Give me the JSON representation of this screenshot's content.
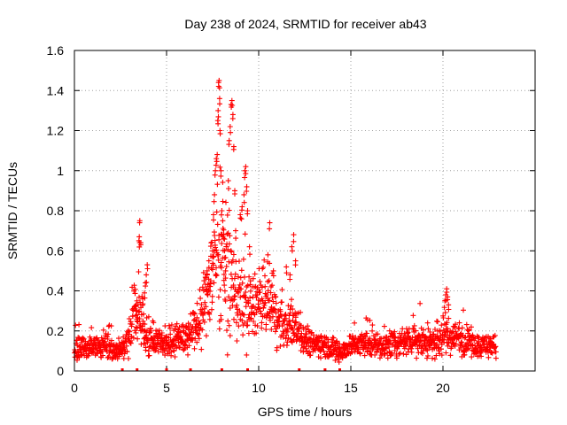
{
  "chart_data": {
    "type": "scatter",
    "title": "Day 238 of 2024, SRMTID for receiver ab43",
    "xlabel": "GPS time / hours",
    "ylabel": "SRMTID / TECUs",
    "xlim": [
      0,
      25
    ],
    "ylim": [
      0,
      1.6
    ],
    "xticks": [
      0,
      5,
      10,
      15,
      20
    ],
    "yticks": [
      0,
      0.2,
      0.4,
      0.6,
      0.8,
      1,
      1.2,
      1.4,
      1.6
    ],
    "xtick_labels": [
      "0",
      "5",
      "10",
      "15",
      "20"
    ],
    "ytick_labels": [
      "0",
      "0.2",
      "0.4",
      "0.6",
      "0.8",
      "1",
      "1.2",
      "1.4",
      "1.6"
    ],
    "grid": true,
    "marker": "+",
    "series": [
      {
        "name": "SRMTID",
        "color": "#ff0000",
        "envelope": [
          [
            0.0,
            0.1,
            0.06
          ],
          [
            0.5,
            0.12,
            0.06
          ],
          [
            1.0,
            0.12,
            0.05
          ],
          [
            1.5,
            0.12,
            0.05
          ],
          [
            2.0,
            0.11,
            0.05
          ],
          [
            2.5,
            0.1,
            0.04
          ],
          [
            3.0,
            0.16,
            0.08
          ],
          [
            3.3,
            0.3,
            0.12
          ],
          [
            3.6,
            0.25,
            0.12
          ],
          [
            4.0,
            0.16,
            0.08
          ],
          [
            4.5,
            0.14,
            0.07
          ],
          [
            5.0,
            0.14,
            0.07
          ],
          [
            5.5,
            0.17,
            0.07
          ],
          [
            6.0,
            0.17,
            0.08
          ],
          [
            6.5,
            0.2,
            0.09
          ],
          [
            7.0,
            0.3,
            0.15
          ],
          [
            7.5,
            0.5,
            0.25
          ],
          [
            7.8,
            0.65,
            0.35
          ],
          [
            8.0,
            0.55,
            0.3
          ],
          [
            8.3,
            0.5,
            0.3
          ],
          [
            8.6,
            0.4,
            0.22
          ],
          [
            9.0,
            0.35,
            0.2
          ],
          [
            9.5,
            0.32,
            0.15
          ],
          [
            10.0,
            0.35,
            0.15
          ],
          [
            10.5,
            0.35,
            0.15
          ],
          [
            11.0,
            0.25,
            0.12
          ],
          [
            11.5,
            0.22,
            0.1
          ],
          [
            12.0,
            0.25,
            0.12
          ],
          [
            12.5,
            0.16,
            0.07
          ],
          [
            13.0,
            0.14,
            0.06
          ],
          [
            13.5,
            0.13,
            0.06
          ],
          [
            14.0,
            0.11,
            0.05
          ],
          [
            14.5,
            0.1,
            0.05
          ],
          [
            15.0,
            0.12,
            0.05
          ],
          [
            15.5,
            0.14,
            0.06
          ],
          [
            16.0,
            0.14,
            0.06
          ],
          [
            16.5,
            0.13,
            0.06
          ],
          [
            17.0,
            0.13,
            0.06
          ],
          [
            17.5,
            0.14,
            0.06
          ],
          [
            18.0,
            0.15,
            0.07
          ],
          [
            18.5,
            0.16,
            0.07
          ],
          [
            19.0,
            0.15,
            0.07
          ],
          [
            19.5,
            0.14,
            0.07
          ],
          [
            20.0,
            0.17,
            0.08
          ],
          [
            20.5,
            0.17,
            0.08
          ],
          [
            21.0,
            0.16,
            0.08
          ],
          [
            21.5,
            0.14,
            0.06
          ],
          [
            22.0,
            0.13,
            0.05
          ],
          [
            22.5,
            0.13,
            0.05
          ],
          [
            22.9,
            0.12,
            0.05
          ]
        ],
        "peaks": [
          [
            3.3,
            0.31
          ],
          [
            3.35,
            0.33
          ],
          [
            3.4,
            0.28
          ],
          [
            3.5,
            0.65
          ],
          [
            3.52,
            0.67
          ],
          [
            3.55,
            0.75
          ],
          [
            3.6,
            0.64
          ],
          [
            3.7,
            0.36
          ],
          [
            3.8,
            0.39
          ],
          [
            3.85,
            0.44
          ],
          [
            3.9,
            0.48
          ],
          [
            3.95,
            0.53
          ],
          [
            7.2,
            0.5
          ],
          [
            7.3,
            0.55
          ],
          [
            7.4,
            0.45
          ],
          [
            7.5,
            0.6
          ],
          [
            7.55,
            0.78
          ],
          [
            7.6,
            0.88
          ],
          [
            7.65,
            1.0
          ],
          [
            7.7,
            1.06
          ],
          [
            7.75,
            1.08
          ],
          [
            7.78,
            1.25
          ],
          [
            7.8,
            1.3
          ],
          [
            7.82,
            1.44
          ],
          [
            7.85,
            1.45
          ],
          [
            7.88,
            1.36
          ],
          [
            7.9,
            1.2
          ],
          [
            7.95,
            1.0
          ],
          [
            8.0,
            0.8
          ],
          [
            8.05,
            0.75
          ],
          [
            8.1,
            0.68
          ],
          [
            8.15,
            0.6
          ],
          [
            8.2,
            0.5
          ],
          [
            8.35,
            0.95
          ],
          [
            8.4,
            1.15
          ],
          [
            8.45,
            1.22
          ],
          [
            8.5,
            1.33
          ],
          [
            8.55,
            1.35
          ],
          [
            8.6,
            1.28
          ],
          [
            8.65,
            1.12
          ],
          [
            8.7,
            0.9
          ],
          [
            8.75,
            0.7
          ],
          [
            9.0,
            0.78
          ],
          [
            9.1,
            0.82
          ],
          [
            9.2,
            0.88
          ],
          [
            9.25,
            1.0
          ],
          [
            9.3,
            1.02
          ],
          [
            9.35,
            0.92
          ],
          [
            9.4,
            0.8
          ],
          [
            9.5,
            0.62
          ],
          [
            10.5,
            0.58
          ],
          [
            10.6,
            0.74
          ],
          [
            10.8,
            0.5
          ],
          [
            11.5,
            0.52
          ],
          [
            11.7,
            0.48
          ],
          [
            11.8,
            0.62
          ],
          [
            11.9,
            0.68
          ],
          [
            12.0,
            0.55
          ],
          [
            20.1,
            0.35
          ],
          [
            20.15,
            0.38
          ],
          [
            20.2,
            0.41
          ],
          [
            20.25,
            0.37
          ],
          [
            20.3,
            0.33
          ]
        ],
        "bottom_ticks_x": [
          2.6,
          3.4,
          5.0,
          6.3,
          8.0,
          9.4,
          12.2,
          13.6,
          14.4
        ]
      }
    ]
  }
}
